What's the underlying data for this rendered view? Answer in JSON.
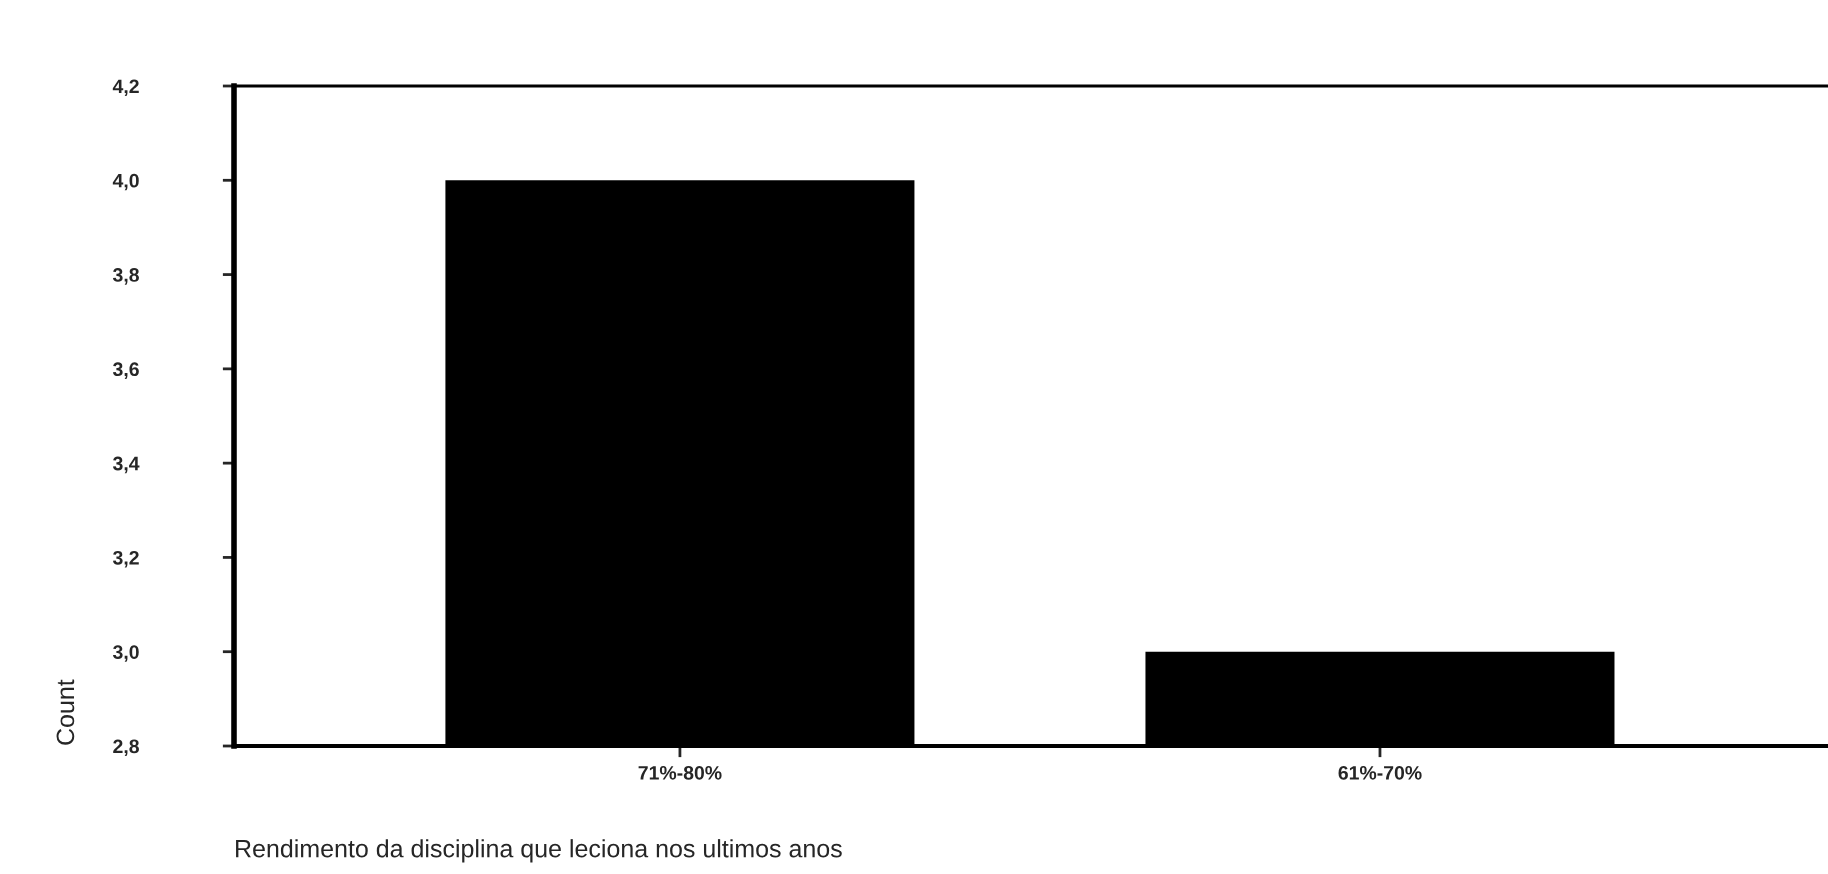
{
  "chart_data": {
    "type": "bar",
    "xlabel": "Rendimento da disciplina que leciona nos ultimos anos",
    "ylabel": "Count",
    "categories": [
      "71%-80%",
      "61%-70%"
    ],
    "values": [
      4.0,
      3.0
    ],
    "color": "#000000",
    "ylim": [
      2.8,
      4.2
    ],
    "yticks": [
      {
        "value": 2.8,
        "label": "2,8"
      },
      {
        "value": 3.0,
        "label": "3,0"
      },
      {
        "value": 3.2,
        "label": "3,2"
      },
      {
        "value": 3.4,
        "label": "3,4"
      },
      {
        "value": 3.6,
        "label": "3,6"
      },
      {
        "value": 3.8,
        "label": "3,8"
      },
      {
        "value": 4.0,
        "label": "4,0"
      },
      {
        "value": 4.2,
        "label": "4,2"
      }
    ],
    "grid": false,
    "legend": false
  }
}
